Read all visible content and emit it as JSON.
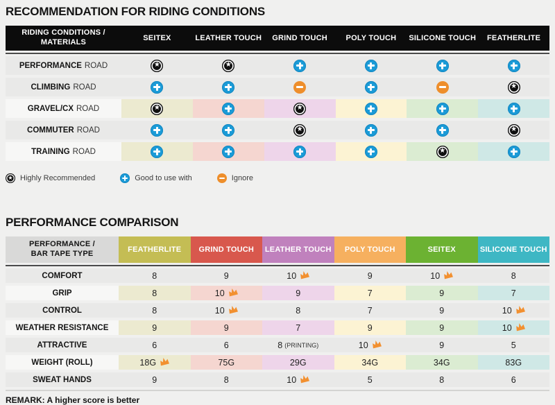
{
  "section1": {
    "title": "RECOMMENDATION FOR RIDING CONDITIONS",
    "header": {
      "line1": "RIDING CONDITIONS /",
      "line2": "MATERIALS"
    },
    "columns": [
      "SEITEX",
      "LEATHER TOUCH",
      "GRIND TOUCH",
      "POLY TOUCH",
      "SILICONE TOUCH",
      "FEATHERLITE"
    ],
    "column_tints": [
      "#ecead0",
      "#f5d6d0",
      "#eed5ea",
      "#fcf3d3",
      "#dbecd2",
      "#cfe8e6"
    ],
    "rows": [
      {
        "condition": "PERFORMANCE",
        "suffix": "ROAD",
        "tinted": false,
        "ratings": [
          "star",
          "star",
          "plus",
          "plus",
          "plus",
          "plus"
        ]
      },
      {
        "condition": "CLIMBING",
        "suffix": "ROAD",
        "tinted": false,
        "ratings": [
          "plus",
          "plus",
          "minus",
          "plus",
          "minus",
          "star"
        ]
      },
      {
        "condition": "GRAVEL/CX",
        "suffix": "ROAD",
        "tinted": true,
        "ratings": [
          "star",
          "plus",
          "star",
          "plus",
          "plus",
          "plus"
        ]
      },
      {
        "condition": "COMMUTER",
        "suffix": "ROAD",
        "tinted": false,
        "ratings": [
          "plus",
          "plus",
          "star",
          "plus",
          "plus",
          "star"
        ]
      },
      {
        "condition": "TRAINING",
        "suffix": "ROAD",
        "tinted": true,
        "ratings": [
          "plus",
          "plus",
          "plus",
          "plus",
          "star",
          "plus"
        ]
      }
    ],
    "legend": [
      {
        "icon": "star",
        "label": "Highly Recommended"
      },
      {
        "icon": "plus",
        "label": "Good to use with"
      },
      {
        "icon": "minus",
        "label": "Ignore"
      }
    ]
  },
  "section2": {
    "title": "PERFORMANCE COMPARISON",
    "header": {
      "line1": "PERFORMANCE /",
      "line2": "BAR TAPE TYPE"
    },
    "columns": [
      {
        "label": "FEATHERLITE",
        "color": "#c4bd54",
        "tint": "#ecead0"
      },
      {
        "label": "GRIND TOUCH",
        "color": "#d8584d",
        "tint": "#f5d6d0"
      },
      {
        "label": "LEATHER TOUCH",
        "color": "#c081bd",
        "tint": "#eed5ea"
      },
      {
        "label": "POLY TOUCH",
        "color": "#f6b05f",
        "tint": "#fcf3d3"
      },
      {
        "label": "SEITEX",
        "color": "#6cb232",
        "tint": "#dbecd2"
      },
      {
        "label": "SILICONE TOUCH",
        "color": "#3eb7c4",
        "tint": "#cfe8e6"
      }
    ],
    "rows": [
      {
        "label": "COMFORT",
        "tinted": false,
        "cells": [
          {
            "value": "8"
          },
          {
            "value": "9"
          },
          {
            "value": "10",
            "crown": true
          },
          {
            "value": "9"
          },
          {
            "value": "10",
            "crown": true
          },
          {
            "value": "8"
          }
        ]
      },
      {
        "label": "GRIP",
        "tinted": true,
        "cells": [
          {
            "value": "8"
          },
          {
            "value": "10",
            "crown": true
          },
          {
            "value": "9"
          },
          {
            "value": "7"
          },
          {
            "value": "9"
          },
          {
            "value": "7"
          }
        ]
      },
      {
        "label": "CONTROL",
        "tinted": false,
        "cells": [
          {
            "value": "8"
          },
          {
            "value": "10",
            "crown": true
          },
          {
            "value": "8"
          },
          {
            "value": "7"
          },
          {
            "value": "9"
          },
          {
            "value": "10",
            "crown": true
          }
        ]
      },
      {
        "label": "WEATHER RESISTANCE",
        "tinted": true,
        "cells": [
          {
            "value": "9"
          },
          {
            "value": "9"
          },
          {
            "value": "7"
          },
          {
            "value": "9"
          },
          {
            "value": "9"
          },
          {
            "value": "10",
            "crown": true
          }
        ]
      },
      {
        "label": "ATTRACTIVE",
        "tinted": false,
        "cells": [
          {
            "value": "6"
          },
          {
            "value": "6"
          },
          {
            "value": "8",
            "note": "(PRINTING)"
          },
          {
            "value": "10",
            "crown": true
          },
          {
            "value": "9"
          },
          {
            "value": "5"
          }
        ]
      },
      {
        "label": "WEIGHT (ROLL)",
        "tinted": true,
        "cells": [
          {
            "value": "18G",
            "crown": true
          },
          {
            "value": "75G"
          },
          {
            "value": "29G"
          },
          {
            "value": "34G"
          },
          {
            "value": "34G"
          },
          {
            "value": "83G"
          }
        ]
      },
      {
        "label": "SWEAT HANDS",
        "tinted": false,
        "cells": [
          {
            "value": "9"
          },
          {
            "value": "8"
          },
          {
            "value": "10",
            "crown": true
          },
          {
            "value": "5"
          },
          {
            "value": "8"
          },
          {
            "value": "6"
          }
        ]
      }
    ],
    "remark": "REMARK: A higher score is better"
  },
  "colors": {
    "page_bg": "#f0f0ef",
    "header_black": "#0c0c0c",
    "row_gray": "#e9e9e8",
    "label_light": "#f7f7f6",
    "accent_blue": "#1b9bd7",
    "accent_orange": "#ee8e2b",
    "badge_black": "#101010",
    "crown_orange": "#f29030"
  },
  "chart_data": [
    {
      "type": "table",
      "title": "RECOMMENDATION FOR RIDING CONDITIONS",
      "row_header": "RIDING CONDITIONS / MATERIALS",
      "columns": [
        "SEITEX",
        "LEATHER TOUCH",
        "GRIND TOUCH",
        "POLY TOUCH",
        "SILICONE TOUCH",
        "FEATHERLITE"
      ],
      "rows": [
        {
          "label": "PERFORMANCE ROAD",
          "values": [
            "highly-recommended",
            "highly-recommended",
            "good-to-use-with",
            "good-to-use-with",
            "good-to-use-with",
            "good-to-use-with"
          ]
        },
        {
          "label": "CLIMBING ROAD",
          "values": [
            "good-to-use-with",
            "good-to-use-with",
            "ignore",
            "good-to-use-with",
            "ignore",
            "highly-recommended"
          ]
        },
        {
          "label": "GRAVEL/CX ROAD",
          "values": [
            "highly-recommended",
            "good-to-use-with",
            "highly-recommended",
            "good-to-use-with",
            "good-to-use-with",
            "good-to-use-with"
          ]
        },
        {
          "label": "COMMUTER ROAD",
          "values": [
            "good-to-use-with",
            "good-to-use-with",
            "highly-recommended",
            "good-to-use-with",
            "good-to-use-with",
            "highly-recommended"
          ]
        },
        {
          "label": "TRAINING ROAD",
          "values": [
            "good-to-use-with",
            "good-to-use-with",
            "good-to-use-with",
            "good-to-use-with",
            "highly-recommended",
            "good-to-use-with"
          ]
        }
      ],
      "legend": [
        "star = Highly Recommended",
        "plus = Good to use with",
        "minus = Ignore"
      ]
    },
    {
      "type": "table",
      "title": "PERFORMANCE COMPARISON",
      "row_header": "PERFORMANCE / BAR TAPE TYPE",
      "columns": [
        "FEATHERLITE",
        "GRIND TOUCH",
        "LEATHER TOUCH",
        "POLY TOUCH",
        "SEITEX",
        "SILICONE TOUCH"
      ],
      "rows": [
        {
          "label": "COMFORT",
          "values": [
            "8",
            "9",
            "10 (best)",
            "9",
            "10 (best)",
            "8"
          ]
        },
        {
          "label": "GRIP",
          "values": [
            "8",
            "10 (best)",
            "9",
            "7",
            "9",
            "7"
          ]
        },
        {
          "label": "CONTROL",
          "values": [
            "8",
            "10 (best)",
            "8",
            "7",
            "9",
            "10 (best)"
          ]
        },
        {
          "label": "WEATHER RESISTANCE",
          "values": [
            "9",
            "9",
            "7",
            "9",
            "9",
            "10 (best)"
          ]
        },
        {
          "label": "ATTRACTIVE",
          "values": [
            "6",
            "6",
            "8 (PRINTING)",
            "10 (best)",
            "9",
            "5"
          ]
        },
        {
          "label": "WEIGHT (ROLL)",
          "values": [
            "18G (best)",
            "75G",
            "29G",
            "34G",
            "34G",
            "83G"
          ]
        },
        {
          "label": "SWEAT HANDS",
          "values": [
            "9",
            "8",
            "10 (best)",
            "5",
            "8",
            "6"
          ]
        }
      ],
      "note": "REMARK: A higher score is better"
    }
  ]
}
